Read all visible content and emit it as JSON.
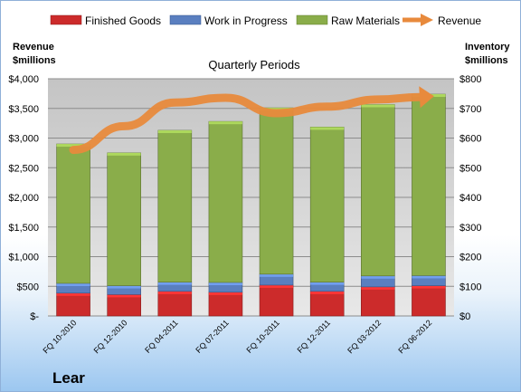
{
  "chart_data": {
    "type": "bar",
    "subtitle": "Quarterly Periods",
    "company": "Lear",
    "categories": [
      "FQ 10-2010",
      "FQ 12-2010",
      "FQ 04-2011",
      "FQ 07-2011",
      "FQ 10-2011",
      "FQ 12-2011",
      "FQ 03-2012",
      "FQ 06-2012"
    ],
    "y_left_label": [
      "Revenue",
      "$millions"
    ],
    "y_right_label": [
      "Inventory",
      "$millions"
    ],
    "y_left_ticks": [
      "$-",
      "$500",
      "$1,000",
      "$1,500",
      "$2,000",
      "$2,500",
      "$3,000",
      "$3,500",
      "$4,000"
    ],
    "y_right_ticks": [
      "$0",
      "$100",
      "$200",
      "$300",
      "$400",
      "$500",
      "$600",
      "$700",
      "$800"
    ],
    "ylim_left": [
      0,
      4000
    ],
    "ylim_right": [
      0,
      800
    ],
    "grid": true,
    "legend_position": "top",
    "stacked_series": [
      {
        "name": "Finished Goods",
        "axis": "right",
        "color": "#cc2b2b",
        "values": [
          77,
          72,
          83,
          80,
          104,
          83,
          98,
          102
        ]
      },
      {
        "name": "Work in Progress",
        "axis": "right",
        "color": "#5a7fc0",
        "values": [
          33,
          30,
          31,
          33,
          37,
          31,
          37,
          34
        ]
      },
      {
        "name": "Raw Materials",
        "axis": "right",
        "color": "#8aad4a",
        "values": [
          470,
          448,
          512,
          543,
          561,
          523,
          578,
          612
        ]
      }
    ],
    "line_series": {
      "name": "Revenue",
      "axis": "left",
      "color": "#e88a3c",
      "values": [
        2800,
        3200,
        3600,
        3680,
        3420,
        3530,
        3650,
        3700
      ]
    }
  }
}
